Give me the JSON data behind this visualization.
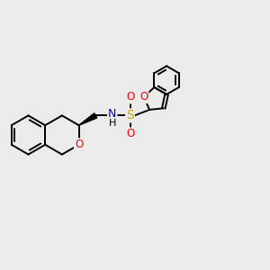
{
  "background_color": "#ebebeb",
  "bond_color": "#000000",
  "figsize": [
    3.0,
    3.0
  ],
  "dpi": 100,
  "lw": 1.4,
  "atom_colors": {
    "N": "#0000cc",
    "O": "#ff0000",
    "S": "#ccaa00",
    "C": "#000000",
    "H": "#000000"
  }
}
